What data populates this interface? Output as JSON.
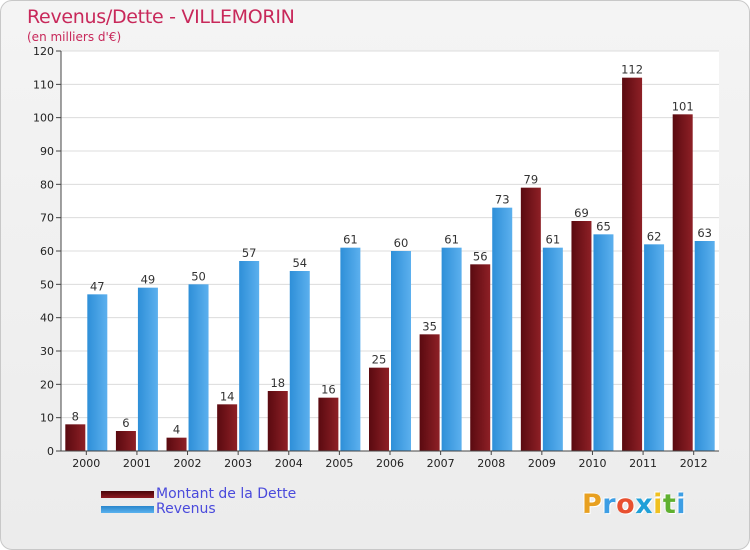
{
  "chart_data": {
    "type": "bar",
    "title": "Revenus/Dette - VILLEMORIN",
    "subtitle": "(en milliers d'€)",
    "categories": [
      "2000",
      "2001",
      "2002",
      "2003",
      "2004",
      "2005",
      "2006",
      "2007",
      "2008",
      "2009",
      "2010",
      "2011",
      "2012"
    ],
    "series": [
      {
        "name": "Montant de la Dette",
        "color": "#7a1218",
        "values": [
          8,
          6,
          4,
          14,
          18,
          16,
          25,
          35,
          56,
          79,
          69,
          112,
          101
        ]
      },
      {
        "name": "Revenus",
        "color": "#3d9ee4",
        "values": [
          47,
          49,
          50,
          57,
          54,
          61,
          60,
          61,
          73,
          61,
          65,
          62,
          63
        ]
      }
    ],
    "ylim": [
      0,
      120
    ],
    "yticks": [
      0,
      10,
      20,
      30,
      40,
      50,
      60,
      70,
      80,
      90,
      100,
      110,
      120
    ],
    "grid": true,
    "legend": "bottom-left"
  },
  "logo": {
    "text": "Proxiti",
    "colors": [
      "#e8a020",
      "#3d9ee4",
      "#e85030",
      "#20a0d8",
      "#f0c020",
      "#60b030",
      "#3d9ee4"
    ]
  }
}
